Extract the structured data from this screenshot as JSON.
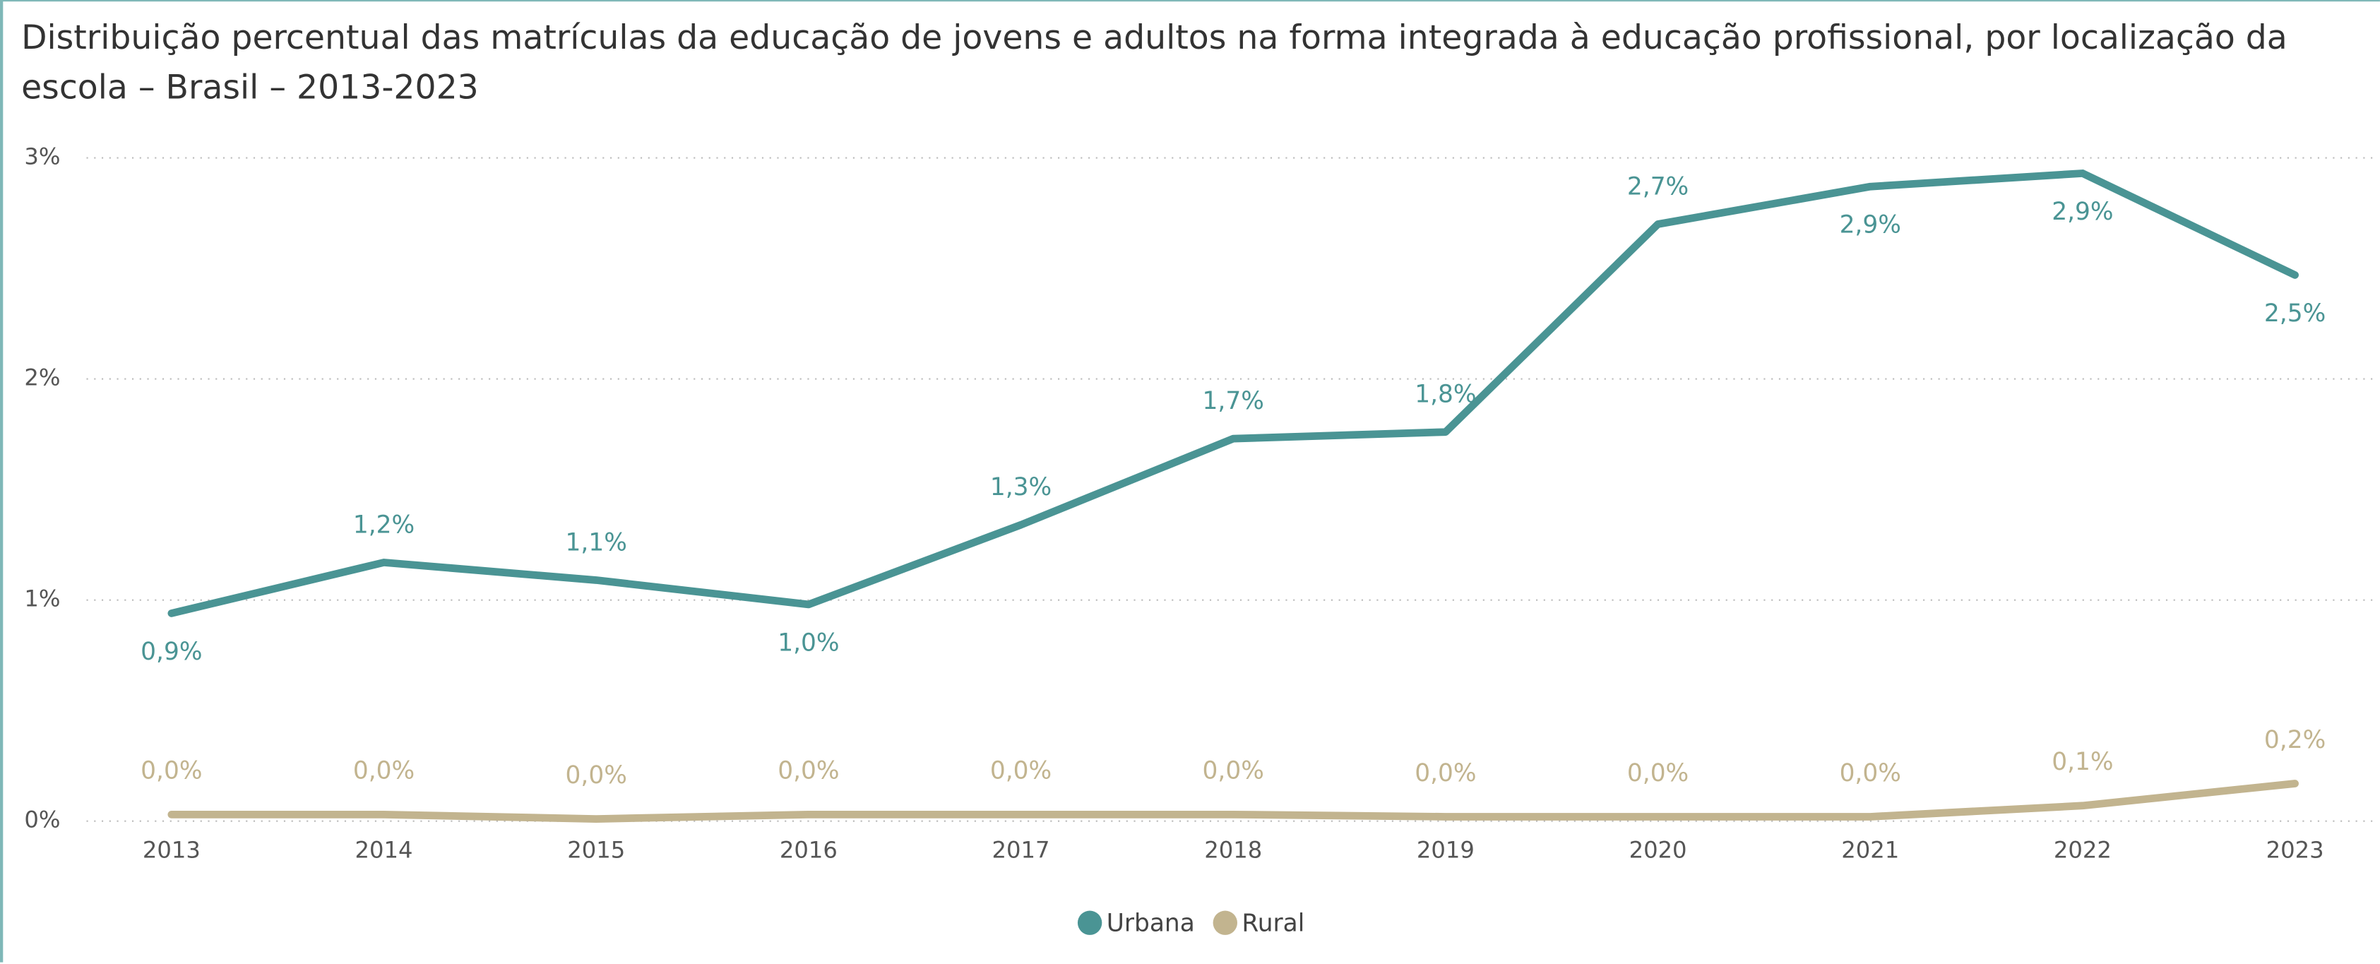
{
  "chart_data": {
    "type": "line",
    "title": "Distribuição percentual das matrículas da educação de jovens e adultos na forma integrada à educação profissional, por localização da escola – Brasil – 2013-2023",
    "categories": [
      "2013",
      "2014",
      "2015",
      "2016",
      "2017",
      "2018",
      "2019",
      "2020",
      "2021",
      "2022",
      "2023"
    ],
    "series": [
      {
        "name": "Urbana",
        "color": "#4a9494",
        "values": [
          0.94,
          1.17,
          1.09,
          0.98,
          1.34,
          1.73,
          1.76,
          2.7,
          2.87,
          2.93,
          2.47
        ],
        "value_labels": [
          "0,9%",
          "1,2%",
          "1,1%",
          "1,0%",
          "1,3%",
          "1,7%",
          "1,8%",
          "2,7%",
          "2,9%",
          "2,9%",
          "2,5%"
        ]
      },
      {
        "name": "Rural",
        "color": "#c2b48f",
        "values": [
          0.03,
          0.03,
          0.01,
          0.03,
          0.03,
          0.03,
          0.02,
          0.02,
          0.02,
          0.07,
          0.17
        ],
        "value_labels": [
          "0,0%",
          "0,0%",
          "0,0%",
          "0,0%",
          "0,0%",
          "0,0%",
          "0,0%",
          "0,0%",
          "0,0%",
          "0,1%",
          "0,2%"
        ]
      }
    ],
    "ylim": [
      0,
      3
    ],
    "yticks": [
      {
        "value": 0,
        "label": "0%"
      },
      {
        "value": 1,
        "label": "1%"
      },
      {
        "value": 2,
        "label": "2%"
      },
      {
        "value": 3,
        "label": "3%"
      }
    ],
    "grid": true,
    "legend": "bottom"
  }
}
